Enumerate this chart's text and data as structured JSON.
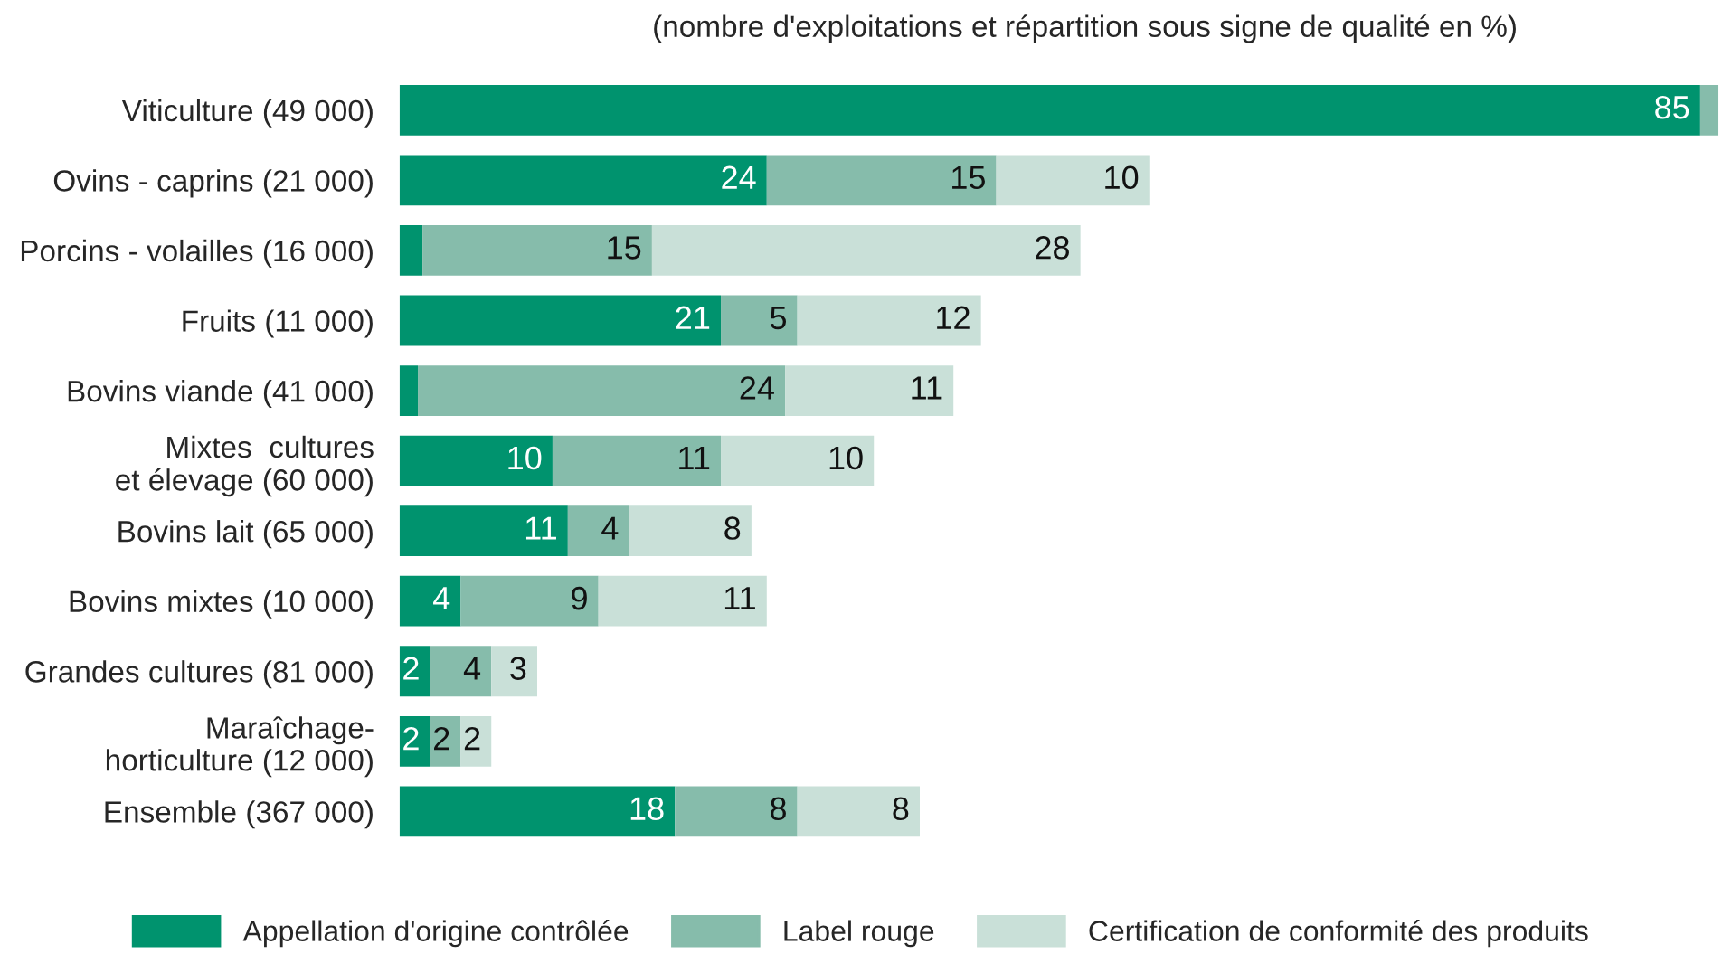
{
  "chart_data": {
    "type": "bar",
    "orientation": "horizontal",
    "stacked": true,
    "subtitle": "(nombre d'exploitations et répartition sous signe de qualité en %)",
    "categories": [
      "Viticulture (49 000)",
      "Ovins - caprins (21 000)",
      "Porcins - volailles (16 000)",
      "Fruits (11 000)",
      "Bovins viande (41 000)",
      "Mixtes  cultures\net élevage (60 000)",
      "Bovins lait (65 000)",
      "Bovins mixtes (10 000)",
      "Grandes cultures (81 000)",
      "Maraîchage-\nhorticulture (12 000)",
      "Ensemble (367 000)"
    ],
    "tick_labels": "y",
    "grid": false,
    "legend": "bottom",
    "series": [
      {
        "name": "Appellation d'origine contrôlée",
        "color": "#00936e",
        "values": [
          85,
          24,
          1.5,
          21,
          1.2,
          10,
          11,
          4,
          2,
          2,
          18
        ],
        "value_labels": [
          "85",
          "24",
          null,
          "21",
          null,
          "10",
          "11",
          "4",
          "2",
          "2",
          "18"
        ]
      },
      {
        "name": "Label rouge",
        "color": "#86bcab",
        "values": [
          1.2,
          15,
          15,
          5,
          24,
          11,
          4,
          9,
          4,
          2,
          8
        ],
        "value_labels": [
          null,
          "15",
          "15",
          "5",
          "24",
          "11",
          "4",
          "9",
          "4",
          "2",
          "8"
        ]
      },
      {
        "name": "Certification de conformité des produits",
        "color": "#c9e0d8",
        "values": [
          null,
          10,
          28,
          12,
          11,
          10,
          8,
          11,
          3,
          2,
          8
        ],
        "value_labels": [
          null,
          "10",
          "28",
          "12",
          "11",
          "10",
          "8",
          "11",
          "3",
          "2",
          "8"
        ]
      }
    ]
  }
}
